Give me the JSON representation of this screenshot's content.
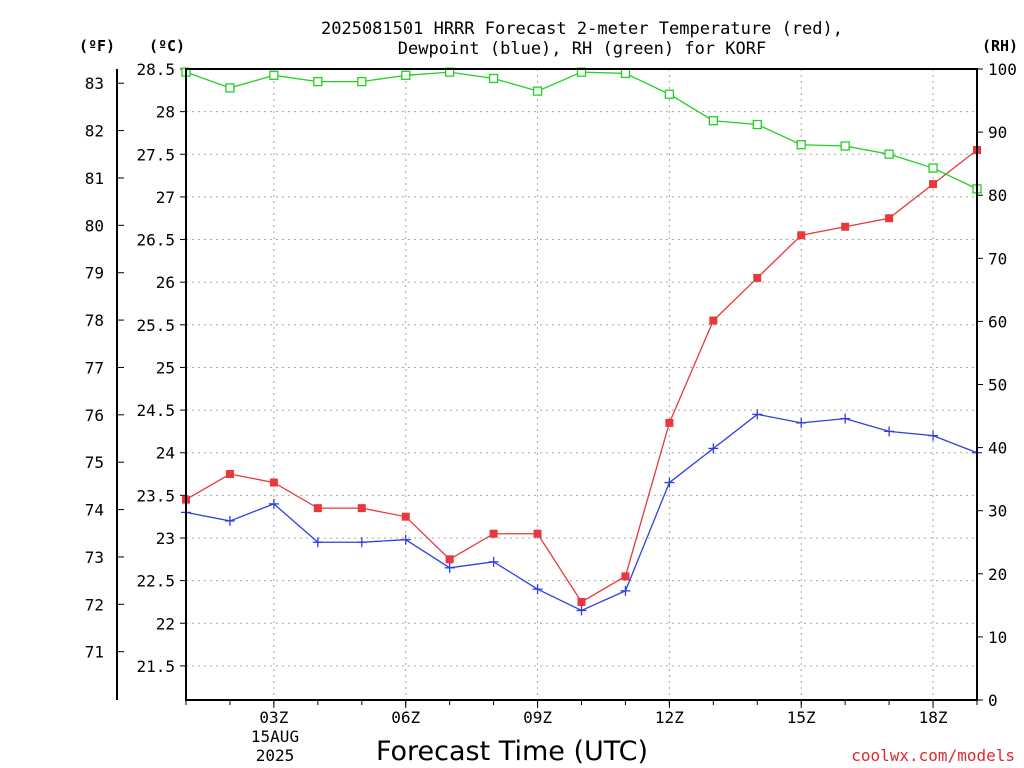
{
  "chart_data": {
    "type": "line",
    "title_line1": "2025081501 HRRR Forecast 2-meter Temperature (red),",
    "title_line2": "Dewpoint (blue), RH (green) for KORF",
    "xlabel": "Forecast Time (UTC)",
    "date_label": [
      "15AUG",
      "2025"
    ],
    "credit": "coolwx.com/models",
    "unit_f": "(ºF)",
    "unit_c": "(ºC)",
    "unit_rh": "(RH)",
    "x_hours": [
      1,
      2,
      3,
      4,
      5,
      6,
      7,
      8,
      9,
      10,
      11,
      12,
      13,
      14,
      15,
      16,
      17,
      18,
      19
    ],
    "x_ticks": [
      {
        "hour": 3,
        "label": "03Z"
      },
      {
        "hour": 6,
        "label": "06Z"
      },
      {
        "hour": 9,
        "label": "09Z"
      },
      {
        "hour": 12,
        "label": "12Z"
      },
      {
        "hour": 15,
        "label": "15Z"
      },
      {
        "hour": 18,
        "label": "18Z"
      }
    ],
    "xlim": [
      1,
      19
    ],
    "ylim_c": [
      21.1,
      28.5
    ],
    "y_ticks_c": [
      "21.5",
      "22",
      "22.5",
      "23",
      "23.5",
      "24",
      "24.5",
      "25",
      "25.5",
      "26",
      "26.5",
      "27",
      "27.5",
      "28",
      "28.5"
    ],
    "y_ticks_f": [
      "71",
      "72",
      "73",
      "74",
      "75",
      "76",
      "77",
      "78",
      "79",
      "80",
      "81",
      "82",
      "83"
    ],
    "ylim_rh": [
      0,
      100
    ],
    "y_ticks_rh": [
      "0",
      "10",
      "20",
      "30",
      "40",
      "50",
      "60",
      "70",
      "80",
      "90",
      "100"
    ],
    "grid": true,
    "series": [
      {
        "name": "Temperature",
        "color": "#e8383c",
        "marker": "filled-square",
        "values": [
          23.45,
          23.75,
          23.65,
          23.35,
          23.35,
          23.25,
          22.75,
          23.05,
          23.05,
          22.25,
          22.55,
          24.35,
          25.55,
          26.05,
          26.55,
          26.65,
          26.75,
          27.15,
          27.55
        ]
      },
      {
        "name": "Dewpoint",
        "color": "#2c40e0",
        "marker": "plus",
        "values": [
          23.3,
          23.2,
          23.4,
          22.95,
          22.95,
          22.98,
          22.65,
          22.72,
          22.4,
          22.15,
          22.38,
          23.65,
          24.05,
          24.45,
          24.35,
          24.4,
          24.25,
          24.2,
          24.0
        ]
      },
      {
        "name": "RH",
        "color": "#22d022",
        "marker": "open-square",
        "values": [
          99.5,
          97.0,
          99.0,
          98.0,
          98.0,
          99.0,
          99.5,
          98.5,
          96.5,
          99.5,
          99.3,
          96.0,
          91.8,
          91.2,
          88.0,
          87.8,
          86.5,
          84.3,
          81.0
        ]
      }
    ]
  }
}
